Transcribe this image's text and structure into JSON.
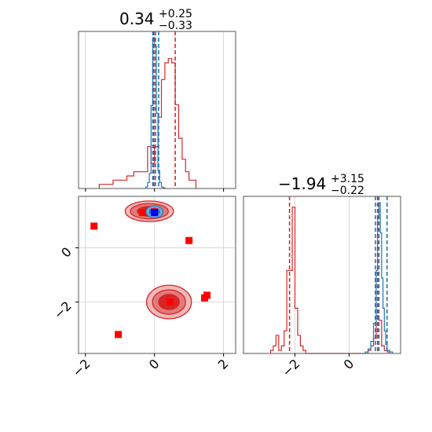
{
  "chart_data": {
    "type": "corner",
    "parameters": [
      {
        "title": "0.34",
        "upper": "+0.25",
        "lower": "−0.33",
        "range": [
          -2.2,
          2.35
        ],
        "ticks": [
          -2,
          0,
          2
        ],
        "tick_labels": [
          "−2",
          "0",
          "2"
        ]
      },
      {
        "title": "−1.94",
        "upper": "+3.15",
        "lower": "−0.22",
        "range": [
          -3.9,
          1.9
        ],
        "ticks": [
          -2,
          0
        ],
        "tick_labels": [
          "−2",
          "0"
        ]
      }
    ],
    "colors": {
      "red": "#d62728",
      "blue": "#1f77b4",
      "marker_red": "#ff0000",
      "marker_blue": "#0000ff"
    },
    "hist_p1": {
      "red": {
        "bins": [
          -1.6,
          -1.4,
          -1.2,
          -1.0,
          -0.8,
          -0.6,
          -0.4,
          -0.2,
          -0.1,
          0.0,
          0.1,
          0.2,
          0.3,
          0.4,
          0.5,
          0.6,
          0.7,
          0.8,
          0.9,
          1.0,
          1.2
        ],
        "values": [
          0.01,
          0.01,
          0.02,
          0.02,
          0.03,
          0.04,
          0.04,
          0.1,
          0.06,
          0.1,
          0.17,
          0.26,
          0.3,
          0.31,
          0.3,
          0.2,
          0.12,
          0.07,
          0.04,
          0.02
        ]
      },
      "blue": {
        "bins": [
          -0.25,
          -0.2,
          -0.15,
          -0.1,
          -0.05,
          0.0,
          0.05,
          0.1,
          0.15,
          0.2,
          0.25,
          0.3
        ],
        "values": [
          0.01,
          0.04,
          0.1,
          0.55,
          1.0,
          0.95,
          0.5,
          0.12,
          0.04,
          0.01,
          0.005
        ]
      },
      "red_quantiles": [
        -0.02,
        0.6
      ],
      "blue_quantiles": [
        -0.05,
        0.03,
        0.12
      ]
    },
    "hist_p2": {
      "red": {
        "bins": [
          -2.9,
          -2.8,
          -2.7,
          -2.6,
          -2.5,
          -2.4,
          -2.3,
          -2.2,
          -2.1,
          -2.0,
          -1.9,
          -1.8,
          -1.7,
          -1.6,
          0.6,
          0.7,
          0.8,
          0.9,
          1.0,
          1.1,
          1.2,
          1.3,
          1.4,
          1.5
        ],
        "values": [
          0.02,
          0.05,
          0.12,
          0.02,
          0.05,
          0.15,
          0.55,
          0.55,
          0.97,
          0.3,
          0.12,
          0.05,
          0.02,
          0.0,
          0.0,
          0.02,
          0.05,
          0.1,
          0.25,
          0.22,
          0.05,
          0.02,
          0.01
        ]
      },
      "blue": {
        "bins": [
          0.6,
          0.7,
          0.8,
          0.9,
          1.0,
          1.05,
          1.1,
          1.15,
          1.2,
          1.25,
          1.3,
          1.35,
          1.4,
          1.5,
          1.6
        ],
        "values": [
          0.01,
          0.03,
          0.08,
          0.2,
          0.55,
          0.9,
          1.0,
          0.8,
          0.5,
          0.3,
          0.15,
          0.06,
          0.02,
          0.01
        ]
      },
      "red_quantiles": [
        -2.2,
        1.05
      ],
      "blue_quantiles": [
        0.97,
        1.1,
        1.4
      ]
    },
    "scatter_2d": {
      "red_markers": [
        {
          "x": -1.75,
          "y": 0.8
        },
        {
          "x": -0.35,
          "y": 1.3
        },
        {
          "x": 0.0,
          "y": 1.33
        },
        {
          "x": 1.0,
          "y": 0.27
        },
        {
          "x": 1.52,
          "y": -1.75
        },
        {
          "x": 1.45,
          "y": -1.85
        },
        {
          "x": 0.45,
          "y": -2.0
        },
        {
          "x": -1.05,
          "y": -3.2
        }
      ],
      "blue_markers": [
        {
          "x": 0.0,
          "y": 1.3
        }
      ],
      "red_blobs": [
        {
          "cx": 0.42,
          "cy": -2.0,
          "rx": [
            0.65,
            0.48,
            0.3
          ],
          "ry": [
            0.62,
            0.45,
            0.28
          ]
        },
        {
          "cx": -0.15,
          "cy": 1.35,
          "rx": [
            0.7,
            0.55,
            0.35
          ],
          "ry": [
            0.38,
            0.28,
            0.18
          ]
        }
      ],
      "blue_blob": {
        "cx": 0.0,
        "cy": 1.33,
        "rx": [
          0.25,
          0.15
        ],
        "ry": [
          0.22,
          0.13
        ]
      }
    }
  }
}
